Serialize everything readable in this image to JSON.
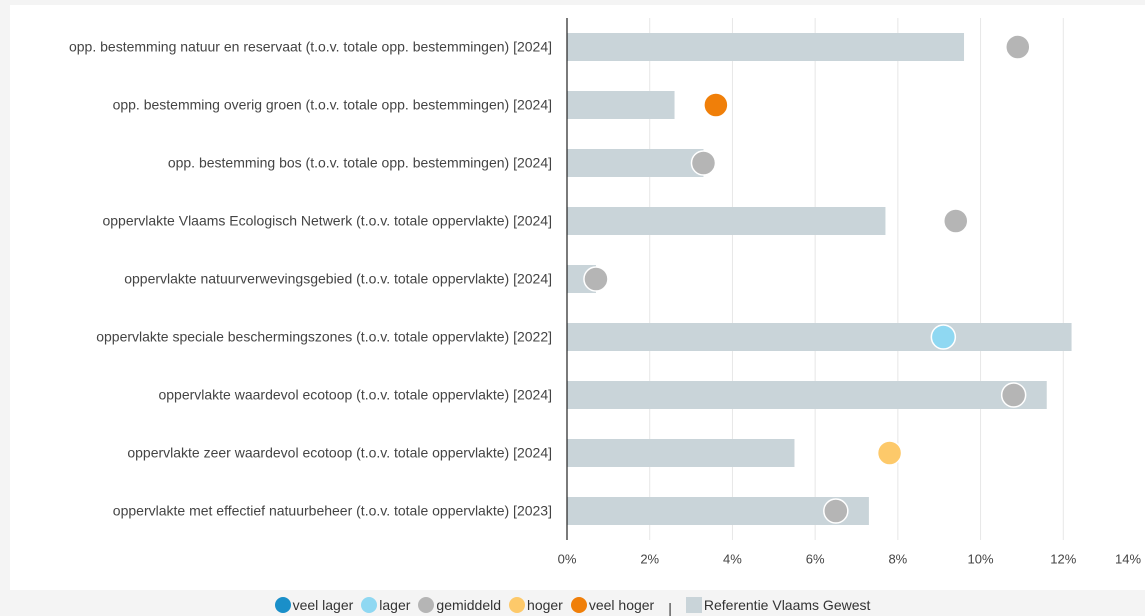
{
  "chart_data": {
    "type": "bar",
    "categories": [
      "opp. bestemming natuur en reservaat (t.o.v. totale opp. bestemmingen) [2024]",
      "opp. bestemming overig groen (t.o.v. totale opp. bestemmingen) [2024]",
      "opp. bestemming bos (t.o.v. totale opp. bestemmingen) [2024]",
      "oppervlakte Vlaams Ecologisch Netwerk (t.o.v. totale oppervlakte) [2024]",
      "oppervlakte natuurverwevingsgebied (t.o.v. totale oppervlakte) [2024]",
      "oppervlakte speciale beschermingszones (t.o.v. totale oppervlakte) [2022]",
      "oppervlakte waardevol ecotoop (t.o.v. totale oppervlakte) [2024]",
      "oppervlakte zeer waardevol ecotoop (t.o.v. totale oppervlakte) [2024]",
      "oppervlakte met effectief natuurbeheer (t.o.v. totale oppervlakte) [2023]"
    ],
    "series": [
      {
        "name": "Referentie Vlaams Gewest",
        "color": "#c9d4d9",
        "values": [
          9.6,
          2.6,
          3.3,
          7.7,
          0.7,
          12.2,
          11.6,
          5.5,
          7.3
        ]
      },
      {
        "values": [
          10.9,
          3.6,
          3.3,
          9.4,
          0.7,
          9.1,
          10.8,
          7.8,
          6.5
        ],
        "colors": [
          "#b5b5b5",
          "#f07f09",
          "#b5b5b5",
          "#b5b5b5",
          "#b5b5b5",
          "#8fd8f2",
          "#b5b5b5",
          "#fdc96a",
          "#b5b5b5"
        ]
      }
    ],
    "legend": [
      {
        "name": "veel lager",
        "color": "#1a8fc9"
      },
      {
        "name": "lager",
        "color": "#8fd8f2"
      },
      {
        "name": "gemiddeld",
        "color": "#b5b5b5"
      },
      {
        "name": "hoger",
        "color": "#fdc96a"
      },
      {
        "name": "veel hoger",
        "color": "#f07f09"
      }
    ],
    "legend_separator": "|",
    "xlim": [
      0,
      14
    ],
    "xticks": [
      {
        "value": 0,
        "label": "0%"
      },
      {
        "value": 2,
        "label": "2%"
      },
      {
        "value": 4,
        "label": "4%"
      },
      {
        "value": 6,
        "label": "6%"
      },
      {
        "value": 8,
        "label": "8%"
      },
      {
        "value": 10,
        "label": "10%"
      },
      {
        "value": 12,
        "label": "12%"
      },
      {
        "value": 14,
        "label": "14%"
      }
    ],
    "grid": true
  }
}
